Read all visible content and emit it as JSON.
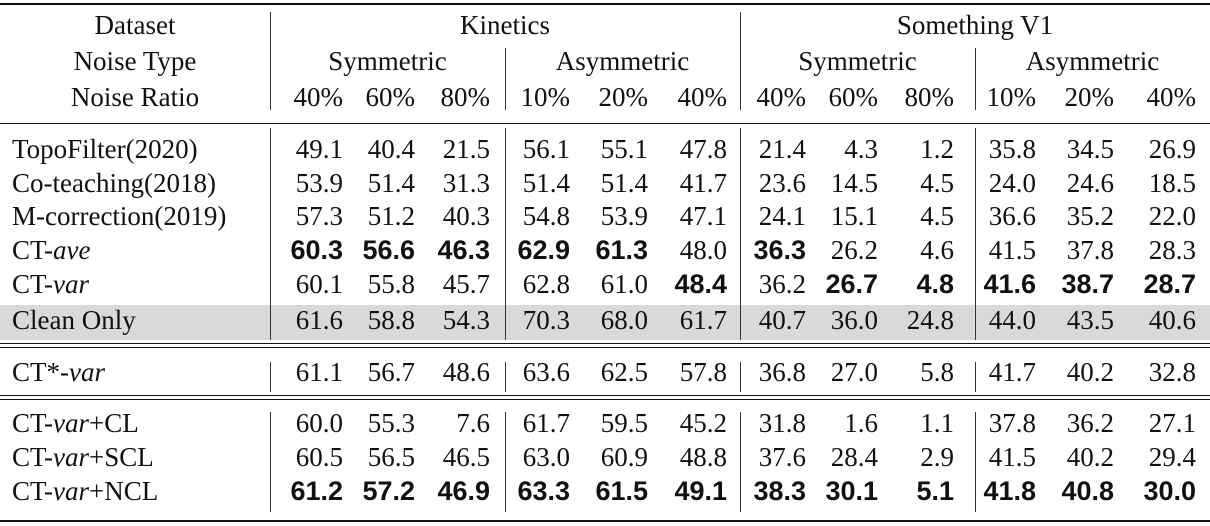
{
  "header": {
    "dataset_label": "Dataset",
    "noise_type_label": "Noise Type",
    "noise_ratio_label": "Noise Ratio",
    "datasets": [
      "Kinetics",
      "Something V1"
    ],
    "noise_types": [
      "Symmetric",
      "Asymmetric",
      "Symmetric",
      "Asymmetric"
    ],
    "ratios": [
      "40%",
      "60%",
      "80%",
      "10%",
      "20%",
      "40%",
      "40%",
      "60%",
      "80%",
      "10%",
      "20%",
      "40%"
    ]
  },
  "rows": [
    {
      "name": "TopoFilter(2020)",
      "values": [
        "49.1",
        "40.4",
        "21.5",
        "56.1",
        "55.1",
        "47.8",
        "21.4",
        "4.3",
        "1.2",
        "35.8",
        "34.5",
        "26.9"
      ],
      "bold": []
    },
    {
      "name": "Co-teaching(2018)",
      "values": [
        "53.9",
        "51.4",
        "31.3",
        "51.4",
        "51.4",
        "41.7",
        "23.6",
        "14.5",
        "4.5",
        "24.0",
        "24.6",
        "18.5"
      ],
      "bold": []
    },
    {
      "name": "M-correction(2019)",
      "values": [
        "57.3",
        "51.2",
        "40.3",
        "54.8",
        "53.9",
        "47.1",
        "24.1",
        "15.1",
        "4.5",
        "36.6",
        "35.2",
        "22.0"
      ],
      "bold": []
    },
    {
      "name_prefix": "CT-",
      "name_italic": "ave",
      "name_suffix": "",
      "values": [
        "60.3",
        "56.6",
        "46.3",
        "62.9",
        "61.3",
        "48.0",
        "36.3",
        "26.2",
        "4.6",
        "41.5",
        "37.8",
        "28.3"
      ],
      "bold": [
        0,
        1,
        2,
        3,
        4,
        6
      ]
    },
    {
      "name_prefix": "CT-",
      "name_italic": "var",
      "name_suffix": "",
      "values": [
        "60.1",
        "55.8",
        "45.7",
        "62.8",
        "61.0",
        "48.4",
        "36.2",
        "26.7",
        "4.8",
        "41.6",
        "38.7",
        "28.7"
      ],
      "bold": [
        5,
        7,
        8,
        9,
        10,
        11
      ]
    },
    {
      "name": "Clean Only",
      "values": [
        "61.6",
        "58.8",
        "54.3",
        "70.3",
        "68.0",
        "61.7",
        "40.7",
        "36.0",
        "24.8",
        "44.0",
        "43.5",
        "40.6"
      ],
      "bold": [],
      "shaded": true
    },
    {
      "name_prefix": "CT*-",
      "name_italic": "var",
      "name_suffix": "",
      "values": [
        "61.1",
        "56.7",
        "48.6",
        "63.6",
        "62.5",
        "57.8",
        "36.8",
        "27.0",
        "5.8",
        "41.7",
        "40.2",
        "32.8"
      ],
      "bold": []
    },
    {
      "name_prefix": "CT-",
      "name_italic": "var",
      "name_suffix": "+CL",
      "values": [
        "60.0",
        "55.3",
        "7.6",
        "61.7",
        "59.5",
        "45.2",
        "31.8",
        "1.6",
        "1.1",
        "37.8",
        "36.2",
        "27.1"
      ],
      "bold": []
    },
    {
      "name_prefix": "CT-",
      "name_italic": "var",
      "name_suffix": "+SCL",
      "values": [
        "60.5",
        "56.5",
        "46.5",
        "63.0",
        "60.9",
        "48.8",
        "37.6",
        "28.4",
        "2.9",
        "41.5",
        "40.2",
        "29.4"
      ],
      "bold": []
    },
    {
      "name_prefix": "CT-",
      "name_italic": "var",
      "name_suffix": "+NCL",
      "values": [
        "61.2",
        "57.2",
        "46.9",
        "63.3",
        "61.5",
        "49.1",
        "38.3",
        "30.1",
        "5.1",
        "41.8",
        "40.8",
        "30.0"
      ],
      "bold": [
        0,
        1,
        2,
        3,
        4,
        5,
        6,
        7,
        8,
        9,
        10,
        11
      ]
    }
  ]
}
